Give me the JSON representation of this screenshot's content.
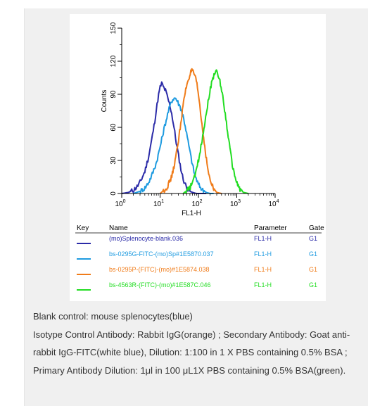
{
  "chart_data": {
    "type": "line",
    "title": "",
    "xlabel": "FL1-H",
    "ylabel": "Counts",
    "xscale": "log",
    "xlim": [
      1,
      10000
    ],
    "ylim": [
      0,
      150
    ],
    "xticks": [
      {
        "value": 1,
        "base": "10",
        "exp": "0"
      },
      {
        "value": 10,
        "base": "10",
        "exp": "1"
      },
      {
        "value": 100,
        "base": "10",
        "exp": "2"
      },
      {
        "value": 1000,
        "base": "10",
        "exp": "3"
      },
      {
        "value": 10000,
        "base": "10",
        "exp": "4"
      }
    ],
    "yticks": [
      "0",
      "30",
      "60",
      "90",
      "120",
      "150"
    ],
    "series": [
      {
        "name": "(mo)Splenocyte-blank.036",
        "color": "#2b2ba8",
        "x": [
          1,
          1.5,
          2,
          2.5,
          3,
          4,
          5,
          6,
          7,
          8,
          9,
          10,
          11,
          12,
          14,
          16,
          18,
          20,
          23,
          26,
          30,
          35,
          40,
          50,
          60,
          70,
          90,
          120,
          160
        ],
        "y": [
          0,
          1,
          3,
          6,
          10,
          20,
          33,
          48,
          62,
          76,
          88,
          96,
          100,
          97,
          93,
          86,
          80,
          73,
          60,
          48,
          35,
          22,
          13,
          5,
          2,
          1,
          0,
          0,
          0
        ]
      },
      {
        "name": "bs-0295G-FITC-(mo)Sp#1E5870.037",
        "color": "#1e9be0",
        "x": [
          2,
          3,
          4,
          5,
          6,
          8,
          10,
          12,
          14,
          16,
          18,
          20,
          22,
          25,
          28,
          32,
          36,
          40,
          45,
          50,
          60,
          70,
          80,
          100,
          130,
          160,
          200,
          250
        ],
        "y": [
          0,
          2,
          5,
          10,
          16,
          28,
          42,
          55,
          65,
          73,
          79,
          84,
          86,
          87,
          84,
          80,
          76,
          70,
          62,
          53,
          38,
          26,
          17,
          8,
          3,
          1,
          0,
          0
        ]
      },
      {
        "name": "bs-0295P-(FITC)-(mo)#1E5874.038",
        "color": "#f07c1a",
        "x": [
          10,
          15,
          20,
          25,
          30,
          35,
          40,
          45,
          50,
          55,
          60,
          65,
          70,
          80,
          90,
          100,
          110,
          120,
          140,
          160,
          180,
          200,
          250,
          300,
          400
        ],
        "y": [
          0,
          5,
          15,
          30,
          48,
          65,
          80,
          91,
          99,
          104,
          108,
          111,
          111,
          107,
          100,
          90,
          78,
          66,
          48,
          32,
          20,
          12,
          4,
          1,
          0
        ]
      },
      {
        "name": "bs-4563R-(FITC)-(mo)#1E587C.046",
        "color": "#22dd22",
        "x": [
          40,
          60,
          80,
          100,
          120,
          140,
          160,
          180,
          200,
          220,
          240,
          260,
          280,
          300,
          350,
          400,
          450,
          500,
          600,
          700,
          800,
          1000,
          1200,
          1500,
          2000
        ],
        "y": [
          0,
          5,
          15,
          30,
          45,
          60,
          73,
          84,
          93,
          100,
          105,
          109,
          111,
          110,
          104,
          95,
          84,
          72,
          52,
          35,
          22,
          10,
          4,
          1,
          0
        ]
      }
    ],
    "legend": {
      "placement": "bottom",
      "headers": {
        "key": "Key",
        "name": "Name",
        "parameter": "Parameter",
        "gate": "Gate"
      },
      "rows": [
        {
          "name": "(mo)Splenocyte-blank.036",
          "parameter": "FL1-H",
          "gate": "G1"
        },
        {
          "name": "bs-0295G-FITC-(mo)Sp#1E5870.037",
          "parameter": "FL1-H",
          "gate": "G1"
        },
        {
          "name": "bs-0295P-(FITC)-(mo)#1E5874.038",
          "parameter": "FL1-H",
          "gate": "G1"
        },
        {
          "name": "bs-4563R-(FITC)-(mo)#1E587C.046",
          "parameter": "FL1-H",
          "gate": "G1"
        }
      ]
    }
  },
  "caption": {
    "lines": [
      "Blank control: mouse splenocytes(blue)",
      "Isotype Control Antibody: Rabbit IgG(orange) ; Secondary Antibody: Goat anti-rabbit IgG-FITC(white blue), Dilution: 1:100 in 1 X PBS containing 0.5% BSA ; Primary Antibody Dilution: 1μl in 100 μL1X PBS containing 0.5% BSA(green)."
    ]
  }
}
